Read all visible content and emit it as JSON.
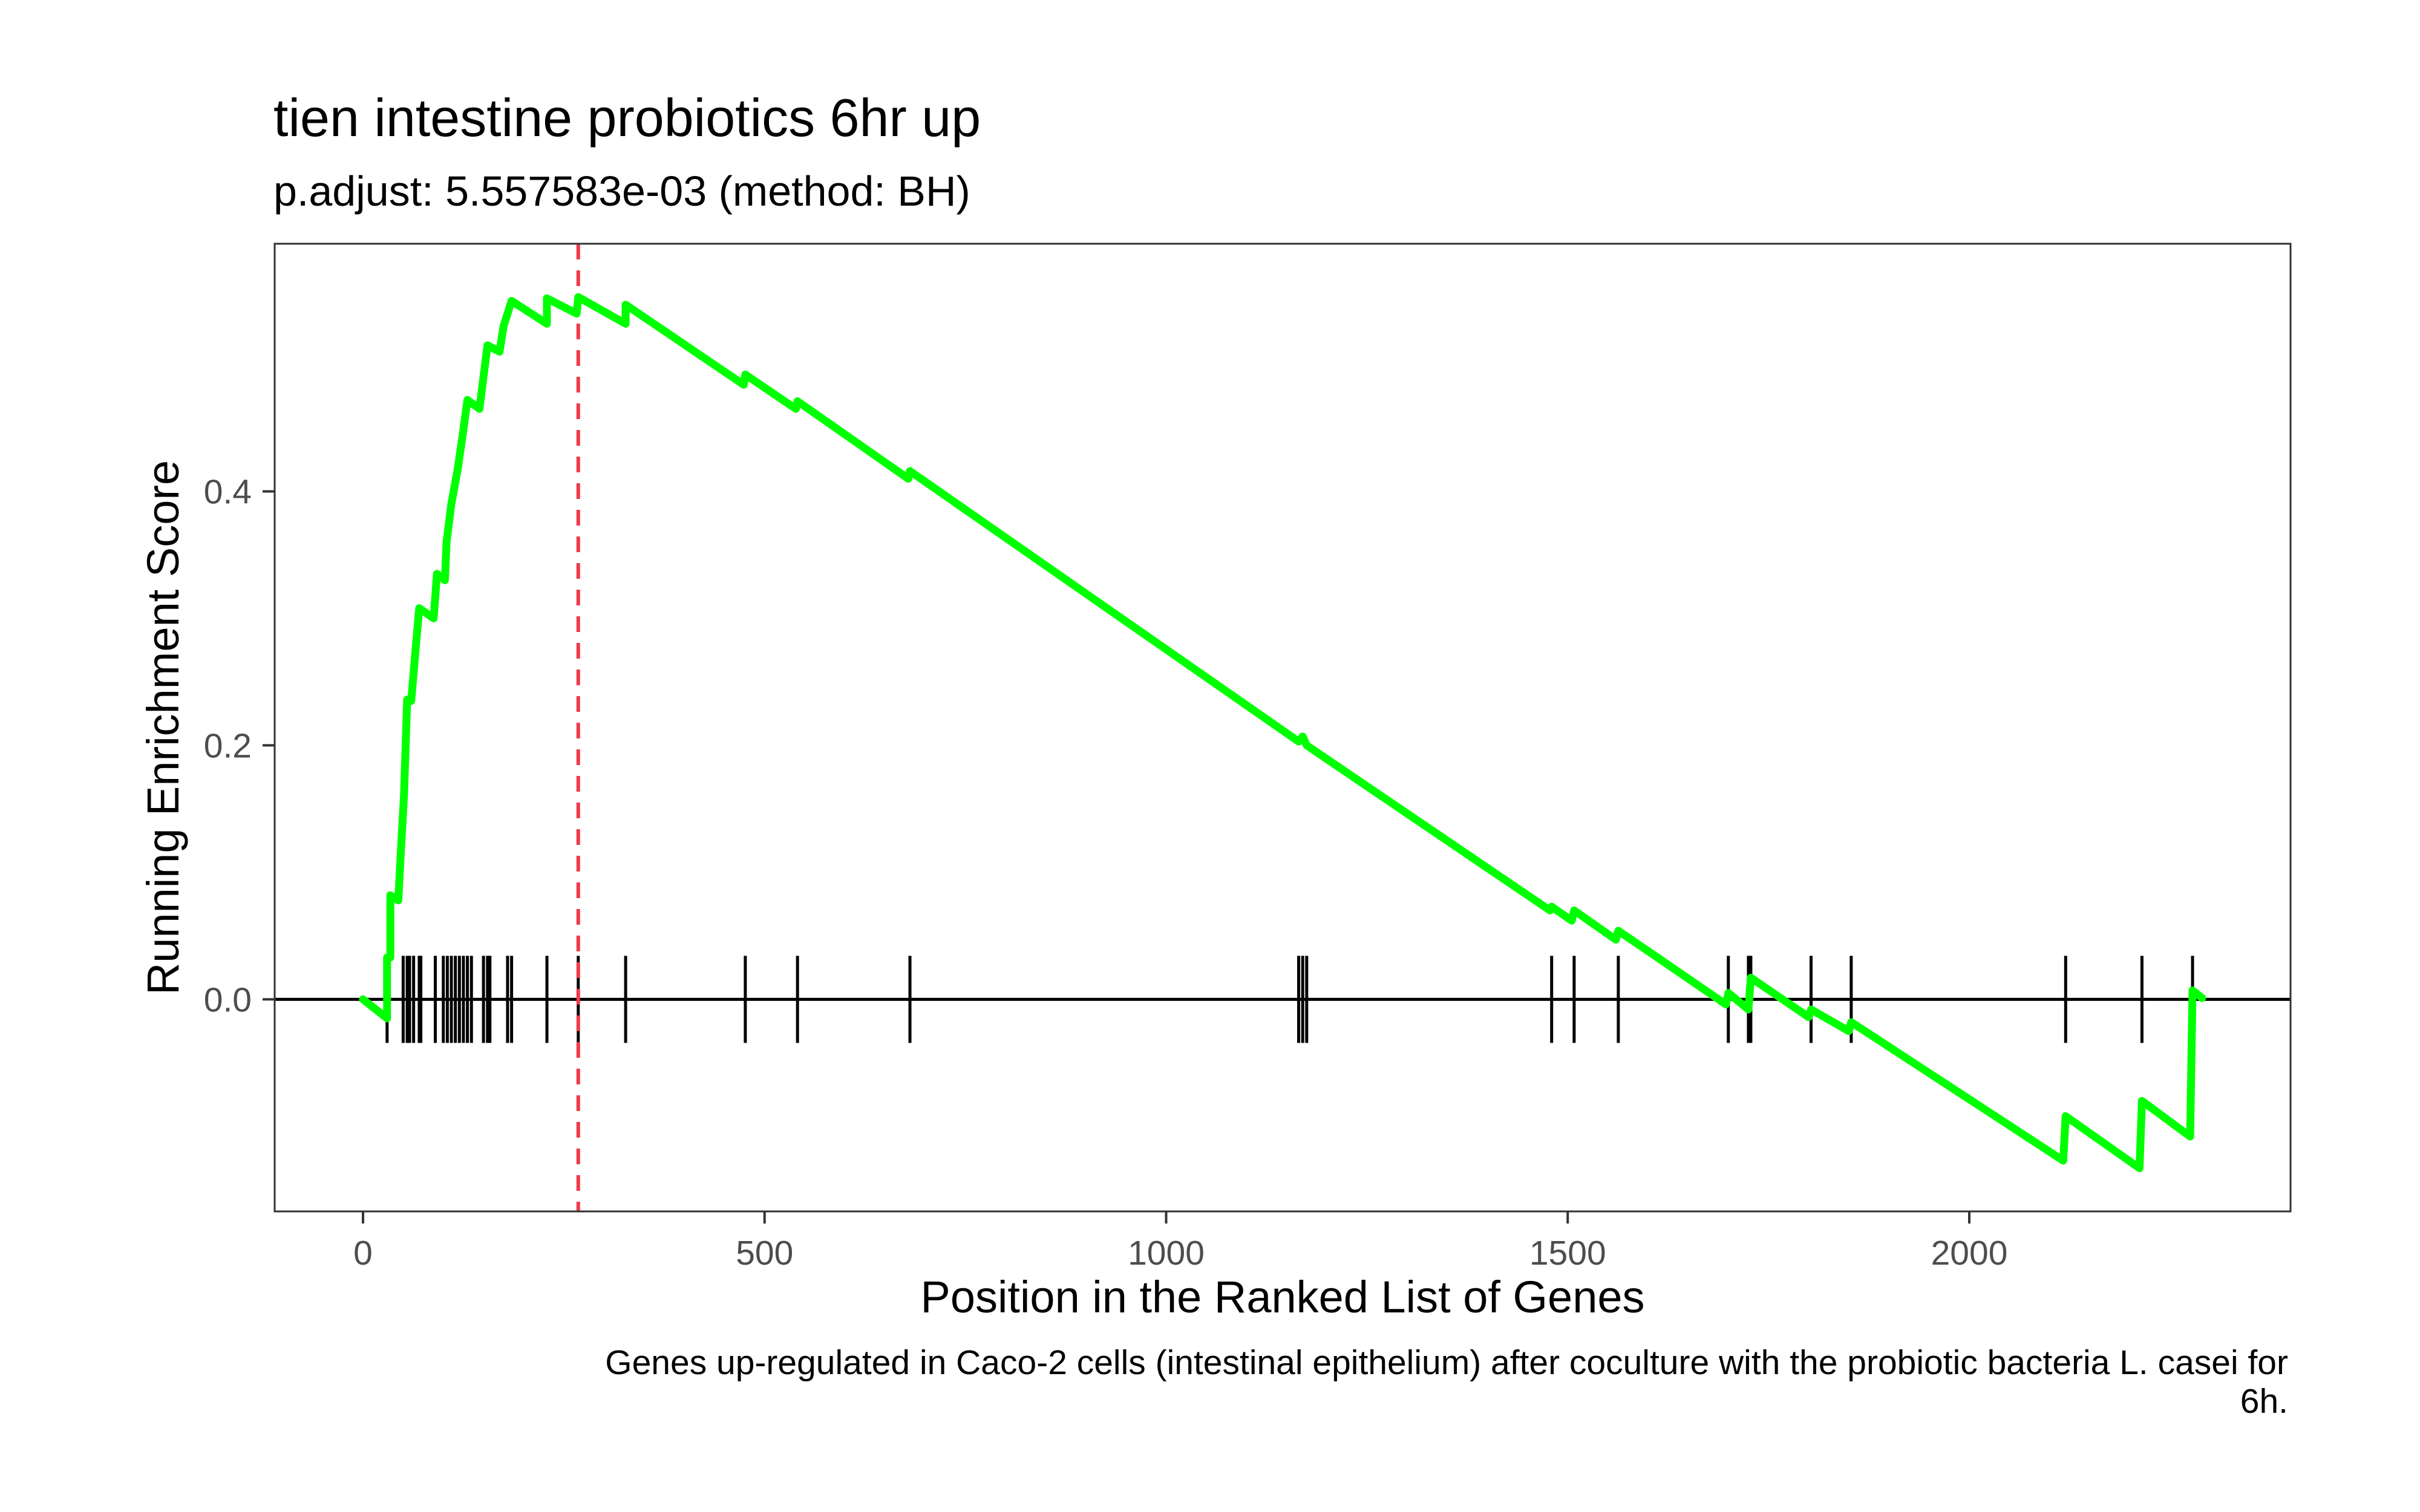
{
  "chart_data": {
    "type": "line",
    "title": "tien intestine probiotics 6hr up",
    "subtitle": "p.adjust: 5.557583e-03 (method: BH)",
    "xlabel": "Position in the Ranked List of Genes",
    "ylabel": "Running Enrichment Score",
    "caption": [
      "Genes up-regulated in Caco-2 cells (intestinal epithelium) after coculture with the probiotic bacteria L. casei for",
      "6h."
    ],
    "xlim": [
      -110,
      2400
    ],
    "ylim": [
      -0.167,
      0.595
    ],
    "x_ticks": [
      0,
      500,
      1000,
      1500,
      2000
    ],
    "x_tick_labels": [
      "0",
      "500",
      "1000",
      "1500",
      "2000"
    ],
    "y_ticks": [
      0.0,
      0.2,
      0.4
    ],
    "y_tick_labels": [
      "0.0",
      "0.2",
      "0.4"
    ],
    "grid": false,
    "colors": {
      "line": "#00ff00",
      "max_line": "#ee3b4b",
      "zero_line": "#000000",
      "rug": "#000000",
      "frame": "#333333"
    },
    "peak_position": 268,
    "series": [
      {
        "values": [
          [
            0,
            0.0
          ],
          [
            30,
            -0.015
          ],
          [
            30,
            0.033
          ],
          [
            34,
            0.033
          ],
          [
            34,
            0.082
          ],
          [
            44,
            0.078
          ],
          [
            47,
            0.115
          ],
          [
            51,
            0.16
          ],
          [
            55,
            0.236
          ],
          [
            60,
            0.235
          ],
          [
            65,
            0.272
          ],
          [
            70,
            0.308
          ],
          [
            88,
            0.3
          ],
          [
            92,
            0.335
          ],
          [
            102,
            0.33
          ],
          [
            104,
            0.36
          ],
          [
            110,
            0.39
          ],
          [
            118,
            0.418
          ],
          [
            124,
            0.444
          ],
          [
            130,
            0.472
          ],
          [
            145,
            0.465
          ],
          [
            150,
            0.49
          ],
          [
            155,
            0.515
          ],
          [
            170,
            0.51
          ],
          [
            175,
            0.53
          ],
          [
            185,
            0.55
          ],
          [
            229,
            0.532
          ],
          [
            229,
            0.552
          ],
          [
            266,
            0.54
          ],
          [
            268,
            0.553
          ],
          [
            327,
            0.532
          ],
          [
            327,
            0.547
          ],
          [
            474,
            0.484
          ],
          [
            476,
            0.492
          ],
          [
            539,
            0.465
          ],
          [
            541,
            0.471
          ],
          [
            679,
            0.41
          ],
          [
            681,
            0.416
          ],
          [
            1165,
            0.203
          ],
          [
            1170,
            0.207
          ],
          [
            1175,
            0.2
          ],
          [
            1478,
            0.07
          ],
          [
            1480,
            0.073
          ],
          [
            1505,
            0.062
          ],
          [
            1508,
            0.07
          ],
          [
            1560,
            0.047
          ],
          [
            1563,
            0.054
          ],
          [
            1697,
            -0.004
          ],
          [
            1700,
            0.005
          ],
          [
            1725,
            -0.008
          ],
          [
            1728,
            0.017
          ],
          [
            1800,
            -0.014
          ],
          [
            1803,
            -0.008
          ],
          [
            1850,
            -0.025
          ],
          [
            1853,
            -0.018
          ],
          [
            2117,
            -0.127
          ],
          [
            2120,
            -0.092
          ],
          [
            2212,
            -0.133
          ],
          [
            2215,
            -0.08
          ],
          [
            2275,
            -0.108
          ],
          [
            2278,
            0.007
          ],
          [
            2290,
            0.001
          ]
        ]
      }
    ],
    "hit_positions": [
      30,
      50,
      55,
      58,
      63,
      70,
      72,
      90,
      100,
      105,
      110,
      115,
      120,
      125,
      130,
      135,
      150,
      155,
      158,
      180,
      185,
      229,
      268,
      327,
      476,
      541,
      681,
      1165,
      1170,
      1175,
      1480,
      1508,
      1563,
      1700,
      1725,
      1728,
      1803,
      1853,
      2120,
      2215,
      2278
    ]
  }
}
